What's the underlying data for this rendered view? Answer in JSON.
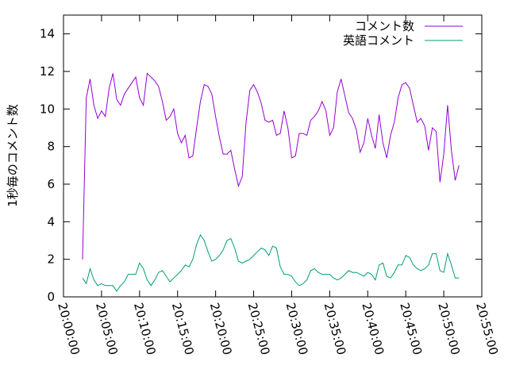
{
  "chart_data": {
    "type": "line",
    "ylabel": "1秒毎のコメント数",
    "xlabel": "",
    "title": "",
    "ylim": [
      0,
      15
    ],
    "y_ticks": [
      0,
      2,
      4,
      6,
      8,
      10,
      12,
      14
    ],
    "y_tick_labels": [
      "0",
      "2",
      "4",
      "6",
      "8",
      "10",
      "12",
      "14"
    ],
    "xlim": [
      "20:00:00",
      "20:55:00"
    ],
    "x_ticks": [
      "20:00:00",
      "20:05:00",
      "20:10:00",
      "20:15:00",
      "20:20:00",
      "20:25:00",
      "20:30:00",
      "20:35:00",
      "20:40:00",
      "20:45:00",
      "20:50:00",
      "20:55:00"
    ],
    "grid": false,
    "legend_position": "top-right",
    "series": [
      {
        "name": "コメント数",
        "color": "#9400d3",
        "points": [
          [
            "20:02:30",
            2.0
          ],
          [
            "20:03:00",
            10.6
          ],
          [
            "20:03:30",
            11.6
          ],
          [
            "20:04:00",
            10.2
          ],
          [
            "20:04:30",
            9.5
          ],
          [
            "20:05:00",
            9.9
          ],
          [
            "20:05:30",
            9.6
          ],
          [
            "20:06:00",
            11.1
          ],
          [
            "20:06:30",
            11.9
          ],
          [
            "20:07:00",
            10.5
          ],
          [
            "20:07:30",
            10.2
          ],
          [
            "20:08:00",
            10.8
          ],
          [
            "20:08:30",
            11.1
          ],
          [
            "20:09:00",
            11.4
          ],
          [
            "20:09:30",
            11.7
          ],
          [
            "20:10:00",
            10.6
          ],
          [
            "20:10:30",
            10.2
          ],
          [
            "20:11:00",
            11.9
          ],
          [
            "20:11:30",
            11.7
          ],
          [
            "20:12:00",
            11.5
          ],
          [
            "20:12:30",
            11.2
          ],
          [
            "20:13:00",
            10.4
          ],
          [
            "20:13:30",
            9.4
          ],
          [
            "20:14:00",
            9.6
          ],
          [
            "20:14:30",
            10.0
          ],
          [
            "20:15:00",
            8.7
          ],
          [
            "20:15:30",
            8.2
          ],
          [
            "20:16:00",
            8.6
          ],
          [
            "20:16:30",
            7.4
          ],
          [
            "20:17:00",
            7.5
          ],
          [
            "20:17:30",
            9.0
          ],
          [
            "20:18:00",
            10.4
          ],
          [
            "20:18:30",
            11.3
          ],
          [
            "20:19:00",
            11.2
          ],
          [
            "20:19:30",
            10.8
          ],
          [
            "20:20:00",
            9.6
          ],
          [
            "20:20:30",
            8.5
          ],
          [
            "20:21:00",
            7.6
          ],
          [
            "20:21:30",
            7.6
          ],
          [
            "20:22:00",
            7.8
          ],
          [
            "20:22:30",
            6.8
          ],
          [
            "20:23:00",
            5.9
          ],
          [
            "20:23:30",
            6.4
          ],
          [
            "20:24:00",
            9.3
          ],
          [
            "20:24:30",
            11.0
          ],
          [
            "20:25:00",
            11.3
          ],
          [
            "20:25:30",
            10.9
          ],
          [
            "20:26:00",
            10.3
          ],
          [
            "20:26:30",
            9.4
          ],
          [
            "20:27:00",
            9.3
          ],
          [
            "20:27:30",
            9.4
          ],
          [
            "20:28:00",
            8.6
          ],
          [
            "20:28:30",
            8.7
          ],
          [
            "20:29:00",
            9.9
          ],
          [
            "20:29:30",
            9.0
          ],
          [
            "20:30:00",
            7.4
          ],
          [
            "20:30:30",
            7.5
          ],
          [
            "20:31:00",
            8.7
          ],
          [
            "20:31:30",
            8.7
          ],
          [
            "20:32:00",
            8.6
          ],
          [
            "20:32:30",
            9.4
          ],
          [
            "20:33:00",
            9.6
          ],
          [
            "20:33:30",
            9.9
          ],
          [
            "20:34:00",
            10.4
          ],
          [
            "20:34:30",
            9.9
          ],
          [
            "20:35:00",
            8.6
          ],
          [
            "20:35:30",
            9.0
          ],
          [
            "20:36:00",
            10.9
          ],
          [
            "20:36:30",
            11.6
          ],
          [
            "20:37:00",
            10.7
          ],
          [
            "20:37:30",
            9.8
          ],
          [
            "20:38:00",
            9.5
          ],
          [
            "20:38:30",
            8.9
          ],
          [
            "20:39:00",
            7.7
          ],
          [
            "20:39:30",
            8.2
          ],
          [
            "20:40:00",
            9.5
          ],
          [
            "20:40:30",
            8.6
          ],
          [
            "20:41:00",
            7.9
          ],
          [
            "20:41:30",
            9.7
          ],
          [
            "20:42:00",
            8.2
          ],
          [
            "20:42:30",
            7.4
          ],
          [
            "20:43:00",
            8.6
          ],
          [
            "20:43:30",
            9.3
          ],
          [
            "20:44:00",
            10.6
          ],
          [
            "20:44:30",
            11.3
          ],
          [
            "20:45:00",
            11.4
          ],
          [
            "20:45:30",
            11.1
          ],
          [
            "20:46:00",
            10.2
          ],
          [
            "20:46:30",
            9.3
          ],
          [
            "20:47:00",
            9.5
          ],
          [
            "20:47:30",
            9.1
          ],
          [
            "20:48:00",
            7.8
          ],
          [
            "20:48:30",
            9.0
          ],
          [
            "20:49:00",
            8.8
          ],
          [
            "20:49:30",
            6.1
          ],
          [
            "20:50:00",
            7.6
          ],
          [
            "20:50:30",
            10.2
          ],
          [
            "20:51:00",
            7.8
          ],
          [
            "20:51:30",
            6.2
          ],
          [
            "20:52:00",
            7.0
          ]
        ]
      },
      {
        "name": "英語コメント",
        "color": "#009e73",
        "points": [
          [
            "20:02:30",
            1.0
          ],
          [
            "20:03:00",
            0.7
          ],
          [
            "20:03:30",
            1.5
          ],
          [
            "20:04:00",
            0.9
          ],
          [
            "20:04:30",
            0.6
          ],
          [
            "20:05:00",
            0.7
          ],
          [
            "20:05:30",
            0.6
          ],
          [
            "20:06:00",
            0.6
          ],
          [
            "20:06:30",
            0.6
          ],
          [
            "20:07:00",
            0.3
          ],
          [
            "20:07:30",
            0.6
          ],
          [
            "20:08:00",
            0.8
          ],
          [
            "20:08:30",
            1.2
          ],
          [
            "20:09:00",
            1.2
          ],
          [
            "20:09:30",
            1.2
          ],
          [
            "20:10:00",
            1.8
          ],
          [
            "20:10:30",
            1.5
          ],
          [
            "20:11:00",
            0.9
          ],
          [
            "20:11:30",
            0.6
          ],
          [
            "20:12:00",
            0.9
          ],
          [
            "20:12:30",
            1.3
          ],
          [
            "20:13:00",
            1.4
          ],
          [
            "20:13:30",
            1.1
          ],
          [
            "20:14:00",
            0.8
          ],
          [
            "20:14:30",
            1.0
          ],
          [
            "20:15:00",
            1.2
          ],
          [
            "20:15:30",
            1.4
          ],
          [
            "20:16:00",
            1.7
          ],
          [
            "20:16:30",
            1.6
          ],
          [
            "20:17:00",
            2.0
          ],
          [
            "20:17:30",
            2.8
          ],
          [
            "20:18:00",
            3.3
          ],
          [
            "20:18:30",
            3.0
          ],
          [
            "20:19:00",
            2.4
          ],
          [
            "20:19:30",
            1.9
          ],
          [
            "20:20:00",
            2.0
          ],
          [
            "20:20:30",
            2.2
          ],
          [
            "20:21:00",
            2.5
          ],
          [
            "20:21:30",
            3.0
          ],
          [
            "20:22:00",
            3.1
          ],
          [
            "20:22:30",
            2.6
          ],
          [
            "20:23:00",
            1.9
          ],
          [
            "20:23:30",
            1.8
          ],
          [
            "20:24:00",
            1.9
          ],
          [
            "20:24:30",
            2.0
          ],
          [
            "20:25:00",
            2.2
          ],
          [
            "20:25:30",
            2.4
          ],
          [
            "20:26:00",
            2.6
          ],
          [
            "20:26:30",
            2.5
          ],
          [
            "20:27:00",
            2.2
          ],
          [
            "20:27:30",
            2.7
          ],
          [
            "20:28:00",
            2.6
          ],
          [
            "20:28:30",
            1.6
          ],
          [
            "20:29:00",
            1.2
          ],
          [
            "20:29:30",
            1.2
          ],
          [
            "20:30:00",
            1.1
          ],
          [
            "20:30:30",
            0.8
          ],
          [
            "20:31:00",
            0.6
          ],
          [
            "20:31:30",
            0.7
          ],
          [
            "20:32:00",
            0.9
          ],
          [
            "20:32:30",
            1.4
          ],
          [
            "20:33:00",
            1.5
          ],
          [
            "20:33:30",
            1.3
          ],
          [
            "20:34:00",
            1.2
          ],
          [
            "20:34:30",
            1.2
          ],
          [
            "20:35:00",
            1.2
          ],
          [
            "20:35:30",
            1.0
          ],
          [
            "20:36:00",
            0.9
          ],
          [
            "20:36:30",
            1.0
          ],
          [
            "20:37:00",
            1.2
          ],
          [
            "20:37:30",
            1.4
          ],
          [
            "20:38:00",
            1.3
          ],
          [
            "20:38:30",
            1.3
          ],
          [
            "20:39:00",
            1.2
          ],
          [
            "20:39:30",
            1.1
          ],
          [
            "20:40:00",
            1.3
          ],
          [
            "20:40:30",
            1.2
          ],
          [
            "20:41:00",
            0.9
          ],
          [
            "20:41:30",
            1.7
          ],
          [
            "20:42:00",
            1.8
          ],
          [
            "20:42:30",
            1.1
          ],
          [
            "20:43:00",
            1.0
          ],
          [
            "20:43:30",
            1.3
          ],
          [
            "20:44:00",
            1.7
          ],
          [
            "20:44:30",
            1.7
          ],
          [
            "20:45:00",
            2.2
          ],
          [
            "20:45:30",
            2.1
          ],
          [
            "20:46:00",
            1.7
          ],
          [
            "20:46:30",
            1.5
          ],
          [
            "20:47:00",
            1.4
          ],
          [
            "20:47:30",
            1.5
          ],
          [
            "20:48:00",
            1.7
          ],
          [
            "20:48:30",
            2.3
          ],
          [
            "20:49:00",
            2.3
          ],
          [
            "20:49:30",
            1.4
          ],
          [
            "20:50:00",
            1.3
          ],
          [
            "20:50:30",
            2.3
          ],
          [
            "20:51:00",
            1.7
          ],
          [
            "20:51:30",
            1.0
          ],
          [
            "20:52:00",
            1.0
          ]
        ]
      }
    ]
  }
}
